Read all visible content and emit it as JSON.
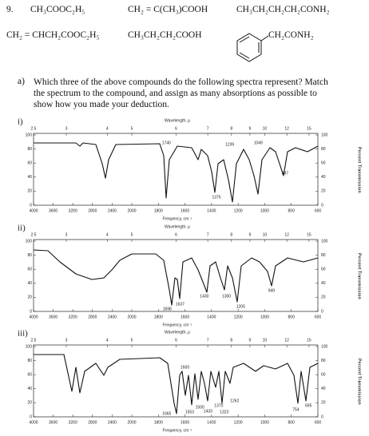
{
  "question": {
    "number": "9.",
    "compounds": [
      "CH₃COOC₂H₅",
      "CH₂ = C(CH₃)COOH",
      "CH₃CH₂CH₂CH₂CONH₂",
      "CH₂ = CHCH₂COOC₂H₅",
      "CH₃CH₂CH₂COOH",
      "CH₂CONH₂"
    ],
    "part": "a)",
    "text": "Which three of the above compounds do the following spectra represent? Match the spectrum to the compound, and assign as many absorptions as possible to show how you made your deduction."
  },
  "spectra": [
    {
      "label": "i)",
      "top_axis_title": "Wavelength, μ",
      "top_ticks": [
        2.5,
        3,
        4,
        5,
        6,
        7,
        8,
        9,
        10,
        12,
        15
      ],
      "bottom_ticks": [
        4000,
        3600,
        3200,
        2800,
        2400,
        2000,
        1800,
        1600,
        1400,
        1200,
        1000,
        800,
        600
      ],
      "bottom_axis_title": "Frequency, cm⁻¹",
      "left_ticks": [
        100,
        80,
        60,
        40,
        20,
        0
      ],
      "right_ticks": [
        100,
        80,
        60,
        40,
        20,
        0
      ],
      "right_axis_title": "Percent Transmission",
      "peaks": [
        1740,
        1239,
        1049,
        847,
        1375
      ]
    },
    {
      "label": "ii)",
      "top_axis_title": "Wavelength, μ",
      "top_ticks": [
        2.5,
        3,
        4,
        5,
        6,
        7,
        8,
        9,
        10,
        12,
        15
      ],
      "bottom_ticks": [
        4000,
        3600,
        3200,
        2800,
        2400,
        2000,
        1800,
        1600,
        1400,
        1200,
        1000,
        800,
        600
      ],
      "bottom_axis_title": "Frequency, cm⁻¹",
      "left_ticks": [
        100,
        80,
        60,
        40,
        20,
        0
      ],
      "right_ticks": [
        100,
        80,
        60,
        40,
        20,
        0
      ],
      "right_axis_title": "Percent Transmission",
      "peaks": [
        1430,
        1300,
        1637,
        1698,
        1205,
        949
      ]
    },
    {
      "label": "iii)",
      "top_axis_title": "Wavelength, μ",
      "top_ticks": [
        2.5,
        3,
        4,
        5,
        6,
        7,
        8,
        9,
        10,
        12,
        15
      ],
      "bottom_ticks": [
        4000,
        3600,
        3200,
        2800,
        2400,
        2000,
        1800,
        1600,
        1400,
        1200,
        1000,
        800,
        600
      ],
      "bottom_axis_title": "Frequency, cm⁻¹",
      "left_ticks": [
        100,
        80,
        60,
        40,
        20,
        0
      ],
      "right_ticks": [
        100,
        80,
        60,
        40,
        20,
        0
      ],
      "right_axis_title": "Percent Transmission",
      "peaks": [
        1600,
        1665,
        1500,
        1553,
        1433,
        1370,
        1323,
        1262,
        754,
        695
      ]
    }
  ]
}
